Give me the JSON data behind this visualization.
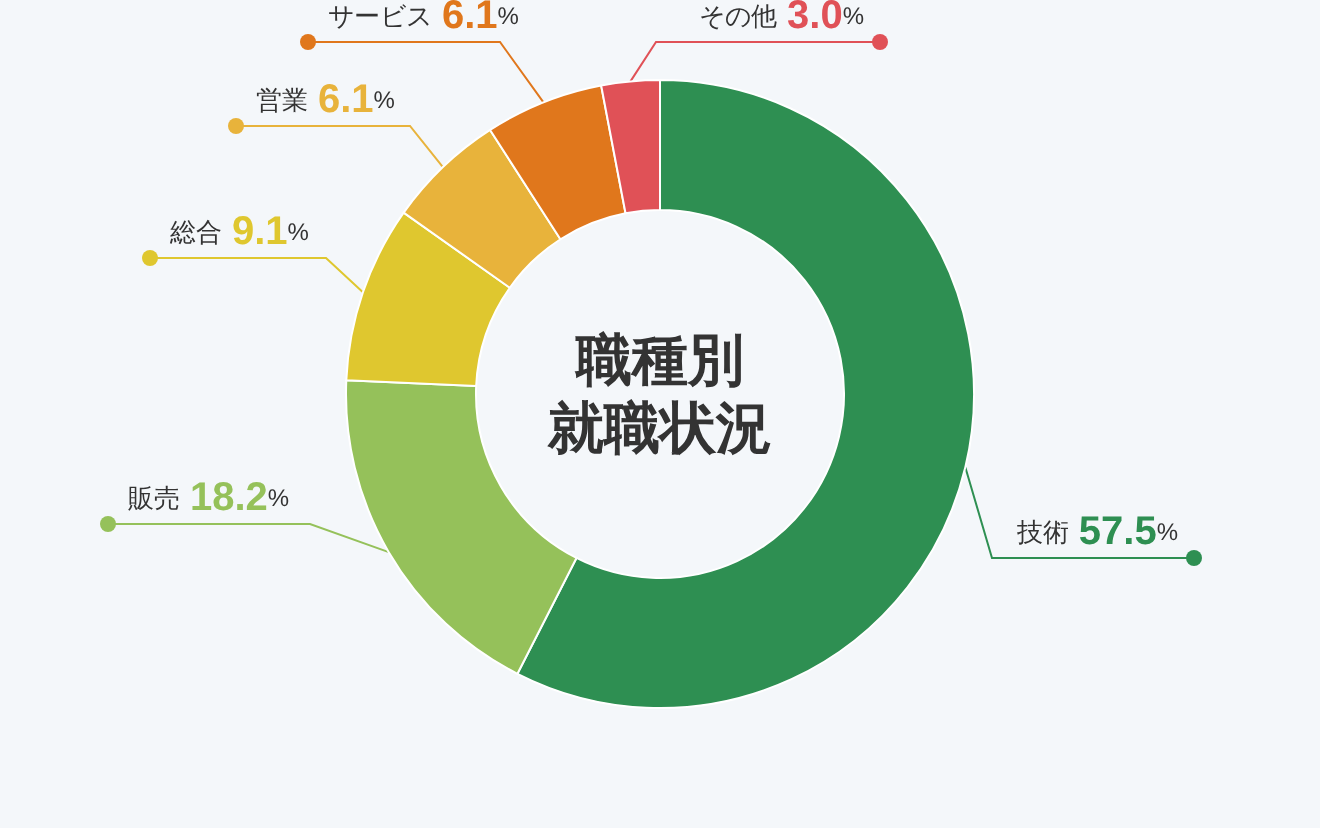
{
  "chart_data": {
    "type": "donut",
    "title": "職種別就職状況",
    "categories": [
      "技術",
      "販売",
      "総合",
      "営業",
      "サービス",
      "その他"
    ],
    "values": [
      57.5,
      18.2,
      9.1,
      6.1,
      6.1,
      3.0
    ],
    "colors": [
      "#2e8f52",
      "#95c15a",
      "#dfc72f",
      "#e8b33b",
      "#e0771c",
      "#e05157"
    ],
    "value_labels": [
      "57.5%",
      "18.2%",
      "9.1%",
      "6.1%",
      "6.1%",
      "3.0%"
    ]
  }
}
